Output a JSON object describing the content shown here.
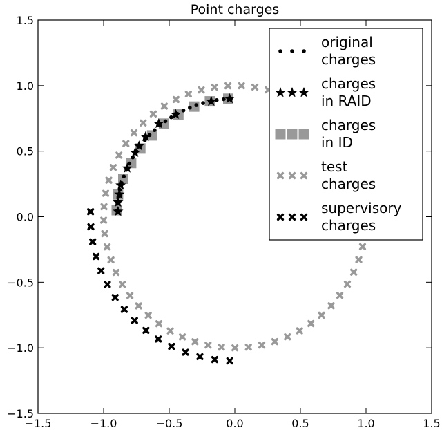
{
  "chart_data": {
    "type": "scatter",
    "title": "Point charges",
    "xlabel": "",
    "ylabel": "",
    "xlim": [
      -1.5,
      1.5
    ],
    "ylim": [
      -1.5,
      1.5
    ],
    "x_ticks": [
      "−1.5",
      "−1.0",
      "−0.5",
      "0.0",
      "0.5",
      "1.0",
      "1.5"
    ],
    "y_ticks": [
      "−1.5",
      "−1.0",
      "−0.5",
      "0.0",
      "0.5",
      "1.0",
      "1.5"
    ],
    "grid": false,
    "legend_position": "top-right",
    "series": [
      {
        "name": "test charges",
        "legend_lines": [
          "test",
          "charges"
        ],
        "marker": "x-bold",
        "color": "#999999",
        "shape": "circle",
        "center": [
          0,
          0
        ],
        "radius": 1.0,
        "theta_start_deg": 93,
        "theta_end_deg": 453,
        "count": 61
      },
      {
        "name": "supervisory charges",
        "legend_lines": [
          "supervisory",
          "charges"
        ],
        "marker": "x-bold",
        "color": "#000000",
        "shape": "arc",
        "center": [
          0,
          0
        ],
        "radius": 1.1,
        "theta_start_deg": 178,
        "theta_end_deg": 268,
        "count": 16
      },
      {
        "name": "charges in ID",
        "legend_lines": [
          "charges",
          "in ID"
        ],
        "marker": "square",
        "color": "#999999",
        "points": [
          [
            -0.9,
            0.05
          ],
          [
            -0.89,
            0.17
          ],
          [
            -0.85,
            0.29
          ],
          [
            -0.79,
            0.41
          ],
          [
            -0.72,
            0.52
          ],
          [
            -0.63,
            0.62
          ],
          [
            -0.54,
            0.71
          ],
          [
            -0.43,
            0.78
          ],
          [
            -0.31,
            0.84
          ],
          [
            -0.19,
            0.88
          ],
          [
            -0.05,
            0.9
          ]
        ]
      },
      {
        "name": "original charges",
        "legend_lines": [
          "original",
          "charges"
        ],
        "marker": "dot",
        "color": "#000000",
        "shape": "arc",
        "center": [
          0,
          0
        ],
        "radius": 0.9,
        "theta_start_deg": 92,
        "theta_end_deg": 177,
        "count": 26
      },
      {
        "name": "charges in RAID",
        "legend_lines": [
          "charges",
          "in RAID"
        ],
        "marker": "star",
        "color": "#000000",
        "points": [
          [
            -0.89,
            0.04
          ],
          [
            -0.89,
            0.11
          ],
          [
            -0.88,
            0.17
          ],
          [
            -0.87,
            0.24
          ],
          [
            -0.82,
            0.37
          ],
          [
            -0.76,
            0.49
          ],
          [
            -0.73,
            0.54
          ],
          [
            -0.68,
            0.61
          ],
          [
            -0.58,
            0.71
          ],
          [
            -0.45,
            0.78
          ],
          [
            -0.18,
            0.88
          ],
          [
            -0.04,
            0.9
          ]
        ]
      }
    ],
    "legend_order": [
      "original charges",
      "charges in RAID",
      "charges in ID",
      "test charges",
      "supervisory charges"
    ]
  }
}
